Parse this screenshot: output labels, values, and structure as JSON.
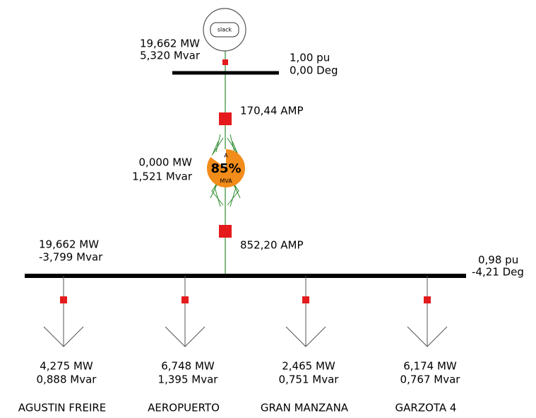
{
  "generator": {
    "label": "slack",
    "mw": "19,662 MW",
    "mvar": "5,320 Mvar"
  },
  "bus_top": {
    "voltage": "1,00 pu",
    "angle": "0,00 Deg"
  },
  "branch": {
    "amps_top": "170,44 AMP",
    "mw": "0,000 MW",
    "mvar": "1,521 Mvar",
    "loading": {
      "value": 85,
      "label": "85%"
    },
    "top_unit": "A",
    "bottom_unit": "MVA",
    "amps_bottom": "852,20 AMP"
  },
  "bus_bottom": {
    "mw": "19,662 MW",
    "mvar": "-3,799 Mvar",
    "voltage": "0,98 pu",
    "angle": "-4,21 Deg"
  },
  "loads": [
    {
      "mw": "4,275 MW",
      "mvar": "0,888 Mvar",
      "name": "AGUSTIN FREIRE"
    },
    {
      "mw": "6,748 MW",
      "mvar": "1,395 Mvar",
      "name": "AEROPUERTO"
    },
    {
      "mw": "2,465 MW",
      "mvar": "0,751 Mvar",
      "name": "GRAN MANZANA"
    },
    {
      "mw": "6,174 MW",
      "mvar": "0,767 Mvar",
      "name": "GARZOTA 4"
    }
  ]
}
